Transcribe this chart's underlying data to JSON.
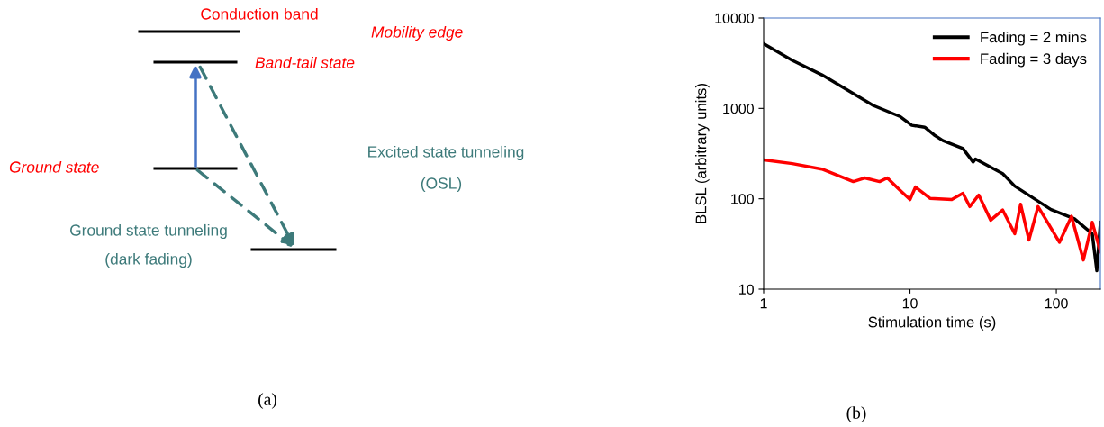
{
  "chart_data": [
    {
      "type": "other",
      "annotations": [
        "Conduction band",
        "Mobility edge",
        "Band-tail state",
        "Ground state",
        "Excited state tunneling",
        "(OSL)",
        "Ground state tunneling",
        "(dark fading)",
        "(a)"
      ]
    },
    {
      "type": "line",
      "xlabel": "Stimulation time (s)",
      "ylabel": "BLSL (arbitrary units)",
      "annotations": [
        "(b)"
      ],
      "log": "xy",
      "xlim": [
        1,
        200
      ],
      "ylim": [
        10,
        10000
      ],
      "xticks": [
        1,
        10,
        100
      ],
      "yticks": [
        10,
        100,
        1000,
        10000
      ],
      "grid": false,
      "legend": "top right",
      "marker": "none",
      "line_style": "solid",
      "series": [
        {
          "name": "Fading = 2 mins",
          "color": "#000000",
          "x": [
            1,
            1.57,
            2.5,
            5.6,
            8.6,
            10.3,
            12.6,
            14.6,
            16.8,
            23,
            27,
            28,
            43,
            52,
            92,
            133,
            176,
            189,
            200
          ],
          "values": [
            5200,
            3400,
            2350,
            1080,
            810,
            650,
            620,
            510,
            440,
            360,
            255,
            275,
            190,
            138,
            76,
            60,
            41,
            16,
            55
          ]
        },
        {
          "name": "Fading = 3 days",
          "color": "#ff0000",
          "x": [
            1,
            1.57,
            2.5,
            4.1,
            4.9,
            6.2,
            7.0,
            8.3,
            10,
            10.9,
            13.7,
            19.3,
            23,
            25.6,
            29.5,
            35.6,
            43,
            52,
            57,
            65,
            75,
            87,
            105,
            127,
            153,
            176,
            200
          ],
          "values": [
            270,
            245,
            213,
            155,
            170,
            155,
            170,
            130,
            98,
            135,
            101,
            98,
            115,
            82,
            110,
            58,
            75,
            41,
            87,
            35,
            82,
            55,
            33,
            64,
            21,
            55,
            26
          ]
        }
      ]
    }
  ]
}
